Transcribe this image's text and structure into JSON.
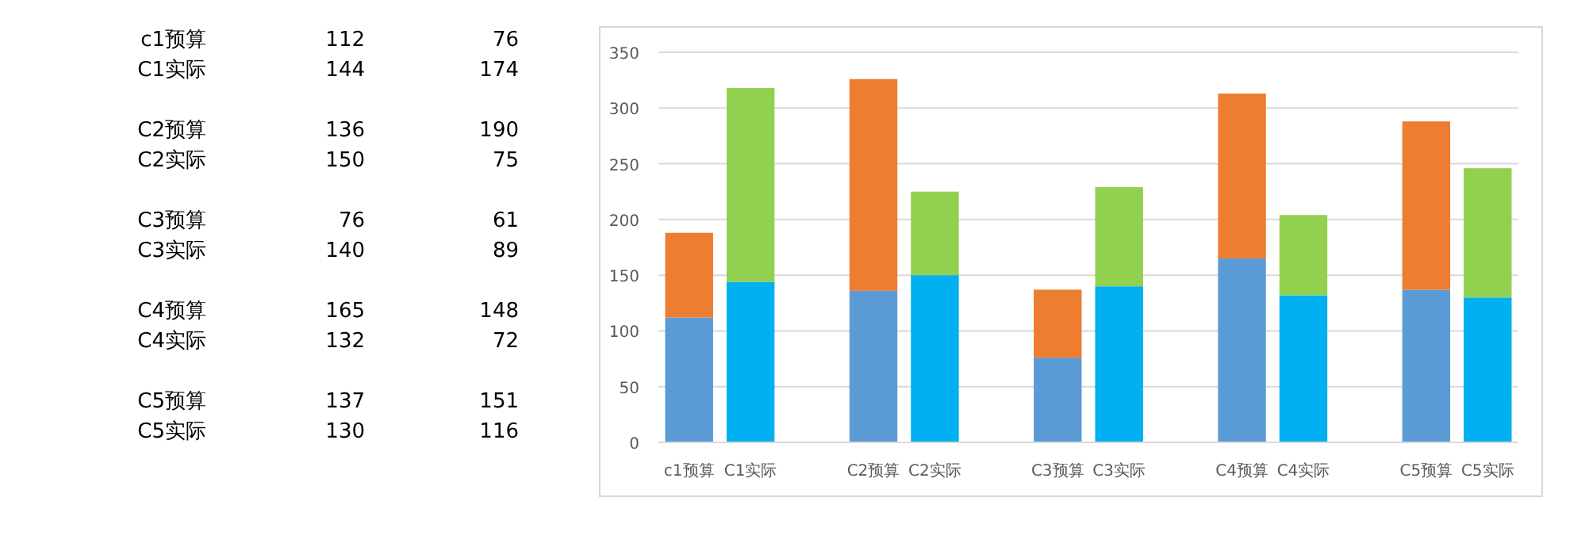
{
  "chart_data": [
    {
      "type": "other",
      "annotations": [
        "c1预算",
        "112",
        "76",
        "C1实际",
        "144",
        "174",
        "C2预算",
        "136",
        "190",
        "C2实际",
        "150",
        "75",
        "C3预算",
        "76",
        "61",
        "C3实际",
        "140",
        "89",
        "C4预算",
        "165",
        "148",
        "C4实际",
        "132",
        "72",
        "C5预算",
        "137",
        "151",
        "C5实际",
        "130",
        "116"
      ]
    },
    {
      "type": "bar",
      "stacked": true,
      "categories": [
        "c1预算",
        "C1实际",
        null,
        "C2预算",
        "C2实际",
        null,
        "C3预算",
        "C3实际",
        null,
        "C4预算",
        "C4实际",
        null,
        "C5预算",
        "C5实际"
      ],
      "series": [
        {
          "colors": [
            "#5b9bd5",
            "#00b0f0",
            null,
            "#5b9bd5",
            "#00b0f0",
            null,
            "#5b9bd5",
            "#00b0f0",
            null,
            "#5b9bd5",
            "#00b0f0",
            null,
            "#5b9bd5",
            "#00b0f0"
          ],
          "values": [
            112,
            144,
            null,
            136,
            150,
            null,
            76,
            140,
            null,
            165,
            132,
            null,
            137,
            130
          ]
        },
        {
          "colors": [
            "#ed7d31",
            "#92d050",
            null,
            "#ed7d31",
            "#92d050",
            null,
            "#ed7d31",
            "#92d050",
            null,
            "#ed7d31",
            "#92d050",
            null,
            "#ed7d31",
            "#92d050"
          ],
          "values": [
            76,
            174,
            null,
            190,
            75,
            null,
            61,
            89,
            null,
            148,
            72,
            null,
            151,
            116
          ]
        }
      ],
      "ylim": [
        0,
        350
      ],
      "yticks": [
        0,
        50,
        100,
        150,
        200,
        250,
        300,
        350
      ],
      "grid": "y"
    }
  ]
}
